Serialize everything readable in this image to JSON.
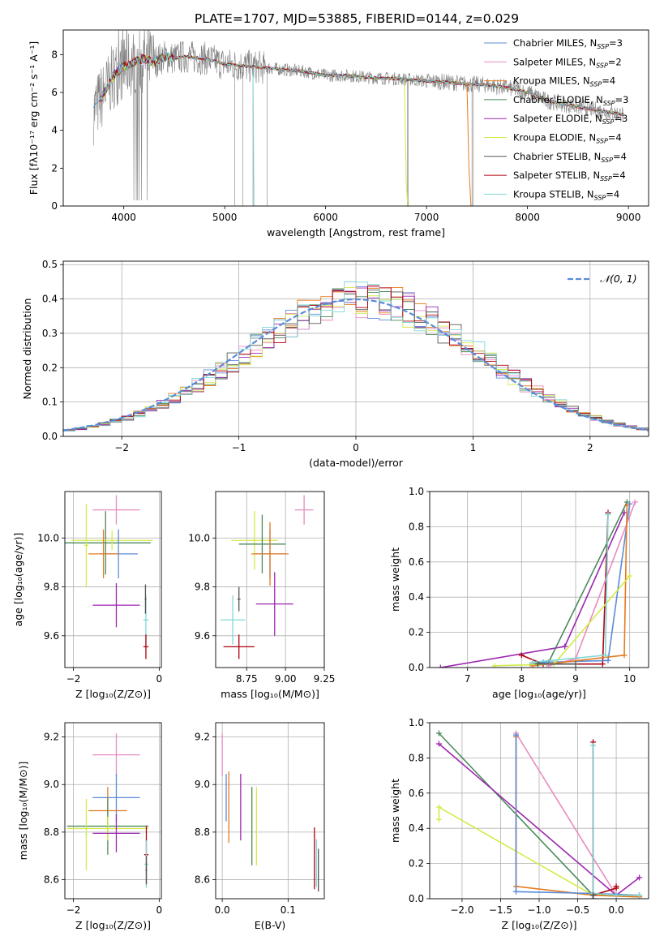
{
  "title": "PLATE=1707, MJD=53885, FIBERID=0144, z=0.029",
  "colors": {
    "grid": "#b0b0b0",
    "data": "#808080",
    "normal": "#5b8bd9"
  },
  "chart_data": [
    {
      "id": "spectrum",
      "type": "line",
      "xlabel": "wavelength [Angstrom, rest frame]",
      "ylabel": "Flux [fλ10⁻¹⁷ erg cm⁻² s⁻¹ A⁻¹]",
      "xlim": [
        3400,
        9200
      ],
      "ylim": [
        0,
        9.3
      ],
      "xticks": [
        4000,
        5000,
        6000,
        7000,
        8000,
        9000
      ],
      "yticks": [
        0,
        2,
        4,
        6,
        8
      ],
      "grid": false,
      "legend": "top-right",
      "continuum": {
        "x": [
          3700,
          3800,
          3900,
          4000,
          4100,
          4200,
          4300,
          4400,
          4500,
          4600,
          4800,
          5000,
          5200,
          5400,
          5600,
          5800,
          6000,
          6200,
          6400,
          6600,
          6800,
          7000,
          7200,
          7400,
          7600,
          7800,
          8000,
          8200,
          8400,
          8600,
          8800,
          8950
        ],
        "y": [
          5.0,
          5.9,
          6.9,
          7.4,
          7.6,
          7.8,
          7.6,
          7.9,
          7.8,
          7.9,
          7.8,
          7.5,
          7.4,
          7.3,
          7.2,
          7.1,
          6.9,
          6.9,
          6.8,
          6.75,
          6.7,
          6.6,
          6.55,
          6.45,
          6.4,
          6.25,
          6.0,
          5.55,
          5.35,
          5.15,
          4.95,
          4.85
        ]
      },
      "series": [
        {
          "name": "Chabrier MILES, N",
          "sub": "SSP",
          "suffix": "=3",
          "color": "#5b8bd9"
        },
        {
          "name": "Salpeter MILES, N",
          "sub": "SSP",
          "suffix": "=2",
          "color": "#e78bbf"
        },
        {
          "name": "Kroupa MILES, N",
          "sub": "SSP",
          "suffix": "=4",
          "color": "#e57a1f"
        },
        {
          "name": "Chabrier ELODIE, N",
          "sub": "SSP",
          "suffix": "=3",
          "color": "#4c8a5a"
        },
        {
          "name": "Salpeter ELODIE, N",
          "sub": "SSP",
          "suffix": "=3",
          "color": "#9c27b0"
        },
        {
          "name": "Kroupa ELODIE, N",
          "sub": "SSP",
          "suffix": "=4",
          "color": "#d4ea4a"
        },
        {
          "name": "Chabrier STELIB, N",
          "sub": "SSP",
          "suffix": "=4",
          "color": "#555555"
        },
        {
          "name": "Salpeter STELIB, N",
          "sub": "SSP",
          "suffix": "=4",
          "color": "#b0000e"
        },
        {
          "name": "Kroupa STELIB, N",
          "sub": "SSP",
          "suffix": "=4",
          "color": "#7fd6d6"
        }
      ]
    },
    {
      "id": "residuals",
      "type": "step",
      "xlabel": "(data-model)/error",
      "ylabel": "Normed distribution",
      "xlim": [
        -2.5,
        2.5
      ],
      "ylim": [
        0,
        0.51
      ],
      "xticks": [
        -2,
        -1,
        0,
        1,
        2
      ],
      "yticks": [
        0.0,
        0.1,
        0.2,
        0.3,
        0.4,
        0.5
      ],
      "grid": true,
      "legend": "top-right",
      "legend_label": "𝒩(0, 1)",
      "bin_width": 0.1
    },
    {
      "id": "age-vs-Z",
      "type": "errorbar",
      "xlabel": "Z [log₁₀(Z/Z⊙)]",
      "ylabel": "age  [log₁₀(age/yr)]",
      "xlim": [
        -2.2,
        0.05
      ],
      "ylim": [
        9.47,
        10.19
      ],
      "xticks": [
        -2,
        0
      ],
      "yticks": [
        9.6,
        9.8,
        10.0
      ],
      "grid": true,
      "points": [
        {
          "x": -1.0,
          "y": 10.115,
          "xerr": 0.55,
          "yerr": 0.06,
          "color": "#e78bbf"
        },
        {
          "x": -1.25,
          "y": 9.98,
          "xerr": 1.05,
          "yerr": 0.13,
          "color": "#4c8a5a"
        },
        {
          "x": -1.1,
          "y": 9.99,
          "xerr": 0.95,
          "yerr": 0.04,
          "color": "#d4ea4a"
        },
        {
          "x": -0.95,
          "y": 9.935,
          "xerr": 0.45,
          "yerr": 0.1,
          "color": "#5b8bd9"
        },
        {
          "x": -1.3,
          "y": 9.935,
          "xerr": 0.35,
          "yerr": 0.1,
          "color": "#e57a1f"
        },
        {
          "x": -1.0,
          "y": 9.725,
          "xerr": 0.55,
          "yerr": 0.09,
          "color": "#9c27b0"
        },
        {
          "x": -0.31,
          "y": 9.665,
          "xerr": 0.06,
          "yerr": 0.1,
          "color": "#7fd6d6"
        },
        {
          "x": -0.31,
          "y": 9.555,
          "xerr": 0.06,
          "yerr": 0.05,
          "color": "#b0000e"
        },
        {
          "x": -1.7,
          "y": 9.97,
          "xerr": 0.05,
          "yerr": 0.17,
          "color": "#d4ea4a"
        },
        {
          "x": -0.32,
          "y": 9.75,
          "xerr": 0.02,
          "yerr": 0.06,
          "color": "#555555"
        }
      ]
    },
    {
      "id": "age-vs-mass",
      "type": "errorbar",
      "xlabel": "mass [log₁₀(M/M⊙)]",
      "ylabel": "",
      "xlim": [
        8.55,
        9.25
      ],
      "ylim": [
        9.47,
        10.19
      ],
      "xticks": [
        8.75,
        9.0,
        9.25
      ],
      "yticks": [
        9.6,
        9.8,
        10.0
      ],
      "grid": true,
      "points": [
        {
          "x": 9.12,
          "y": 10.115,
          "xerr": 0.06,
          "yerr": 0.06,
          "color": "#e78bbf"
        },
        {
          "x": 8.8,
          "y": 9.99,
          "xerr": 0.15,
          "yerr": 0.12,
          "color": "#d4ea4a"
        },
        {
          "x": 8.85,
          "y": 9.975,
          "xerr": 0.15,
          "yerr": 0.12,
          "color": "#4c8a5a"
        },
        {
          "x": 8.9,
          "y": 9.935,
          "xerr": 0.1,
          "yerr": 0.1,
          "color": "#5b8bd9"
        },
        {
          "x": 8.9,
          "y": 9.935,
          "xerr": 0.12,
          "yerr": 0.13,
          "color": "#e57a1f"
        },
        {
          "x": 8.93,
          "y": 9.73,
          "xerr": 0.12,
          "yerr": 0.13,
          "color": "#9c27b0"
        },
        {
          "x": 8.66,
          "y": 9.665,
          "xerr": 0.08,
          "yerr": 0.1,
          "color": "#7fd6d6"
        },
        {
          "x": 8.7,
          "y": 9.555,
          "xerr": 0.1,
          "yerr": 0.05,
          "color": "#b0000e"
        },
        {
          "x": 8.7,
          "y": 9.75,
          "xerr": 0.01,
          "yerr": 0.05,
          "color": "#555555"
        }
      ]
    },
    {
      "id": "mass-weight-vs-age",
      "type": "line",
      "xlabel": "age  [log₁₀(age/yr)]",
      "ylabel": "mass weight",
      "xlim": [
        6.3,
        10.35
      ],
      "ylim": [
        0,
        1.0
      ],
      "xticks": [
        7,
        8,
        9,
        10
      ],
      "yticks": [
        0.0,
        0.2,
        0.4,
        0.6,
        0.8,
        1.0
      ],
      "grid": true,
      "series": [
        {
          "color": "#9c27b0",
          "x": [
            6.5,
            8.8,
            9.9
          ],
          "y": [
            0.0,
            0.12,
            0.88
          ]
        },
        {
          "color": "#b0000e",
          "x": [
            8.0,
            8.4,
            9.5,
            9.6
          ],
          "y": [
            0.07,
            0.02,
            0.02,
            0.88
          ]
        },
        {
          "color": "#4c8a5a",
          "x": [
            8.2,
            8.5,
            9.95
          ],
          "y": [
            0.02,
            0.03,
            0.94
          ]
        },
        {
          "color": "#5b8bd9",
          "x": [
            8.4,
            9.6,
            10.0
          ],
          "y": [
            0.03,
            0.04,
            0.93
          ]
        },
        {
          "color": "#e78bbf",
          "x": [
            8.5,
            9.0,
            10.1
          ],
          "y": [
            0.01,
            0.05,
            0.94
          ]
        },
        {
          "color": "#e57a1f",
          "x": [
            8.2,
            9.9,
            9.95
          ],
          "y": [
            0.01,
            0.07,
            0.92
          ]
        },
        {
          "color": "#d4ea4a",
          "x": [
            7.5,
            8.6,
            10.0
          ],
          "y": [
            0.01,
            0.02,
            0.52
          ]
        },
        {
          "color": "#7fd6d6",
          "x": [
            8.2,
            9.55,
            9.6
          ],
          "y": [
            0.03,
            0.07,
            0.87
          ]
        },
        {
          "color": "#555555",
          "x": [
            8.3,
            9.0
          ],
          "y": [
            0.02,
            0.02
          ]
        }
      ]
    },
    {
      "id": "mass-vs-Z",
      "type": "errorbar",
      "xlabel": "Z [log₁₀(Z/Z⊙)]",
      "ylabel": "mass [log₁₀(M/M⊙)]",
      "xlim": [
        -2.2,
        0.05
      ],
      "ylim": [
        8.52,
        9.26
      ],
      "xticks": [
        -2,
        0
      ],
      "yticks": [
        8.6,
        8.8,
        9.0,
        9.2
      ],
      "grid": true,
      "points": [
        {
          "x": -1.0,
          "y": 9.125,
          "xerr": 0.55,
          "yerr": 0.09,
          "color": "#e78bbf"
        },
        {
          "x": -1.0,
          "y": 8.945,
          "xerr": 0.55,
          "yerr": 0.1,
          "color": "#5b8bd9"
        },
        {
          "x": -1.2,
          "y": 8.89,
          "xerr": 0.45,
          "yerr": 0.1,
          "color": "#e57a1f"
        },
        {
          "x": -1.2,
          "y": 8.825,
          "xerr": 0.95,
          "yerr": 0.12,
          "color": "#4c8a5a"
        },
        {
          "x": -1.2,
          "y": 8.815,
          "xerr": 0.95,
          "yerr": 0.05,
          "color": "#d4ea4a"
        },
        {
          "x": -1.0,
          "y": 8.795,
          "xerr": 0.55,
          "yerr": 0.08,
          "color": "#9c27b0"
        },
        {
          "x": -0.3,
          "y": 8.705,
          "xerr": 0.05,
          "yerr": 0.12,
          "color": "#b0000e"
        },
        {
          "x": -0.3,
          "y": 8.665,
          "xerr": 0.05,
          "yerr": 0.1,
          "color": "#7fd6d6"
        },
        {
          "x": -1.7,
          "y": 8.79,
          "xerr": 0.02,
          "yerr": 0.15,
          "color": "#d4ea4a"
        },
        {
          "x": -0.3,
          "y": 8.64,
          "xerr": 0.02,
          "yerr": 0.06,
          "color": "#555555"
        }
      ]
    },
    {
      "id": "mass-vs-ebv",
      "type": "errorbar",
      "xlabel": "E(B-V)",
      "ylabel": "",
      "xlim": [
        -0.01,
        0.155
      ],
      "ylim": [
        8.52,
        9.26
      ],
      "xticks": [
        0.0,
        0.1
      ],
      "yticks": [
        8.6,
        8.8,
        9.0,
        9.2
      ],
      "grid": true,
      "points": [
        {
          "x": 0.0,
          "y": 9.125,
          "xerr": 0.0,
          "yerr": 0.09,
          "color": "#e78bbf"
        },
        {
          "x": 0.006,
          "y": 8.945,
          "xerr": 0.0,
          "yerr": 0.1,
          "color": "#5b8bd9"
        },
        {
          "x": 0.01,
          "y": 8.905,
          "xerr": 0.0,
          "yerr": 0.15,
          "color": "#e57a1f"
        },
        {
          "x": 0.028,
          "y": 8.905,
          "xerr": 0.0,
          "yerr": 0.14,
          "color": "#9c27b0"
        },
        {
          "x": 0.045,
          "y": 8.825,
          "xerr": 0.0,
          "yerr": 0.165,
          "color": "#4c8a5a"
        },
        {
          "x": 0.052,
          "y": 8.825,
          "xerr": 0.0,
          "yerr": 0.165,
          "color": "#d4ea4a"
        },
        {
          "x": 0.14,
          "y": 8.69,
          "xerr": 0.0,
          "yerr": 0.13,
          "color": "#b0000e"
        },
        {
          "x": 0.143,
          "y": 8.67,
          "xerr": 0.0,
          "yerr": 0.1,
          "color": "#7fd6d6"
        },
        {
          "x": 0.146,
          "y": 8.64,
          "xerr": 0.0,
          "yerr": 0.09,
          "color": "#555555"
        }
      ]
    },
    {
      "id": "mass-weight-vs-Z",
      "type": "line",
      "xlabel": "Z [log₁₀(Z/Z⊙)]",
      "ylabel": "mass weight",
      "xlim": [
        -2.42,
        0.42
      ],
      "ylim": [
        0,
        1.0
      ],
      "xticks": [
        -2.0,
        -1.5,
        -1.0,
        -0.5,
        0.0
      ],
      "yticks": [
        0.0,
        0.2,
        0.4,
        0.6,
        0.8,
        1.0
      ],
      "grid": true,
      "series": [
        {
          "color": "#4c8a5a",
          "x": [
            -2.3,
            -0.3,
            0.3
          ],
          "y": [
            0.94,
            0.02,
            0.02
          ]
        },
        {
          "color": "#9c27b0",
          "x": [
            -2.3,
            0.0,
            0.3
          ],
          "y": [
            0.88,
            0.02,
            0.12
          ]
        },
        {
          "color": "#d4ea4a",
          "x": [
            -2.3,
            -2.3,
            -0.3,
            0.3
          ],
          "y": [
            0.45,
            0.52,
            0.02,
            0.01
          ]
        },
        {
          "color": "#e78bbf",
          "x": [
            -1.3,
            0.0,
            0.3
          ],
          "y": [
            0.94,
            0.02,
            0.01
          ]
        },
        {
          "color": "#e57a1f",
          "x": [
            -1.3,
            -1.3,
            -0.3,
            0.3
          ],
          "y": [
            0.92,
            0.07,
            0.02,
            0.01
          ]
        },
        {
          "color": "#5b8bd9",
          "x": [
            -1.3,
            -1.3,
            -0.3,
            0.3
          ],
          "y": [
            0.93,
            0.04,
            0.03,
            0.02
          ]
        },
        {
          "color": "#b0000e",
          "x": [
            -0.3,
            -0.3,
            0.0,
            0.0
          ],
          "y": [
            0.89,
            0.02,
            0.06,
            0.07
          ]
        },
        {
          "color": "#7fd6d6",
          "x": [
            -0.3,
            -0.3,
            0.0,
            0.3
          ],
          "y": [
            0.87,
            0.03,
            0.02,
            0.02
          ]
        },
        {
          "color": "#555555",
          "x": [
            -0.3,
            -0.3
          ],
          "y": [
            0.02,
            0.0
          ]
        }
      ]
    }
  ]
}
